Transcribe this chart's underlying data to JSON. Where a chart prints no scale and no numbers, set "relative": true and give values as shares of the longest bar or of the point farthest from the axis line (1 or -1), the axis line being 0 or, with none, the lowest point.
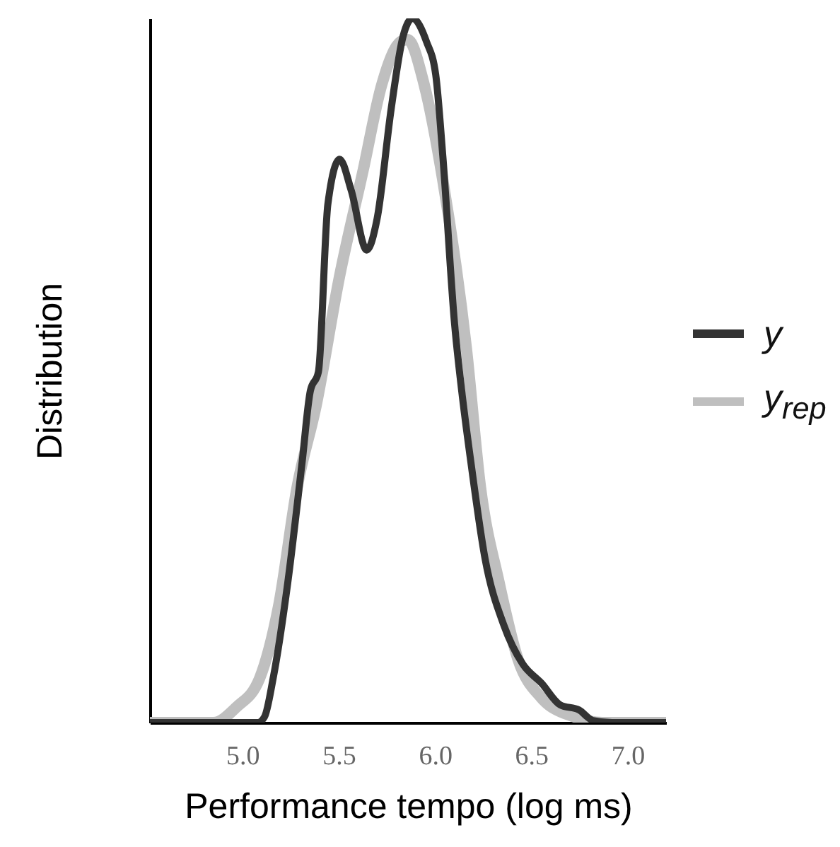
{
  "chart_data": {
    "type": "line",
    "xlabel": "Performance tempo (log ms)",
    "ylabel": "Distribution",
    "relative": true,
    "xlim": [
      4.52,
      7.2
    ],
    "xticks": [
      {
        "value": 5,
        "label": "5.0"
      },
      5.5,
      {
        "value": 6,
        "label": "6.0"
      },
      6.5,
      {
        "value": 7,
        "label": "7.0"
      }
    ],
    "legend": "right",
    "grid": false,
    "line_style": "solid",
    "marker": "none",
    "series": [
      {
        "name": "y",
        "color": "#333333",
        "x": [
          4.52,
          5.08,
          5.115,
          5.16,
          5.236,
          5.31,
          5.353,
          5.395,
          5.444,
          5.505,
          5.565,
          5.646,
          5.7,
          5.773,
          5.834,
          5.883,
          5.956,
          6.004,
          6.041,
          6.102,
          6.139,
          6.187,
          6.26,
          6.358,
          6.456,
          6.553,
          6.651,
          6.748,
          6.82,
          6.92,
          7.2
        ],
        "values": [
          0,
          0,
          0.008,
          0.063,
          0.199,
          0.369,
          0.471,
          0.498,
          0.736,
          0.8,
          0.756,
          0.671,
          0.716,
          0.872,
          0.974,
          1,
          0.967,
          0.92,
          0.804,
          0.566,
          0.471,
          0.369,
          0.233,
          0.138,
          0.083,
          0.056,
          0.025,
          0.018,
          0.003,
          0,
          0
        ]
      },
      {
        "name": "y$_{rep}$",
        "color": "#bfbfbf",
        "x": [
          4.52,
          4.85,
          4.97,
          5.09,
          5.188,
          5.285,
          5.383,
          5.505,
          5.627,
          5.724,
          5.822,
          5.858,
          5.944,
          6.041,
          6.163,
          6.236,
          6.333,
          6.431,
          6.553,
          6.724,
          6.87,
          7.2
        ],
        "values": [
          0,
          0,
          0.022,
          0.063,
          0.165,
          0.335,
          0.45,
          0.634,
          0.784,
          0.906,
          0.967,
          0.97,
          0.906,
          0.77,
          0.532,
          0.335,
          0.199,
          0.09,
          0.035,
          0.008,
          0,
          0
        ]
      }
    ]
  }
}
